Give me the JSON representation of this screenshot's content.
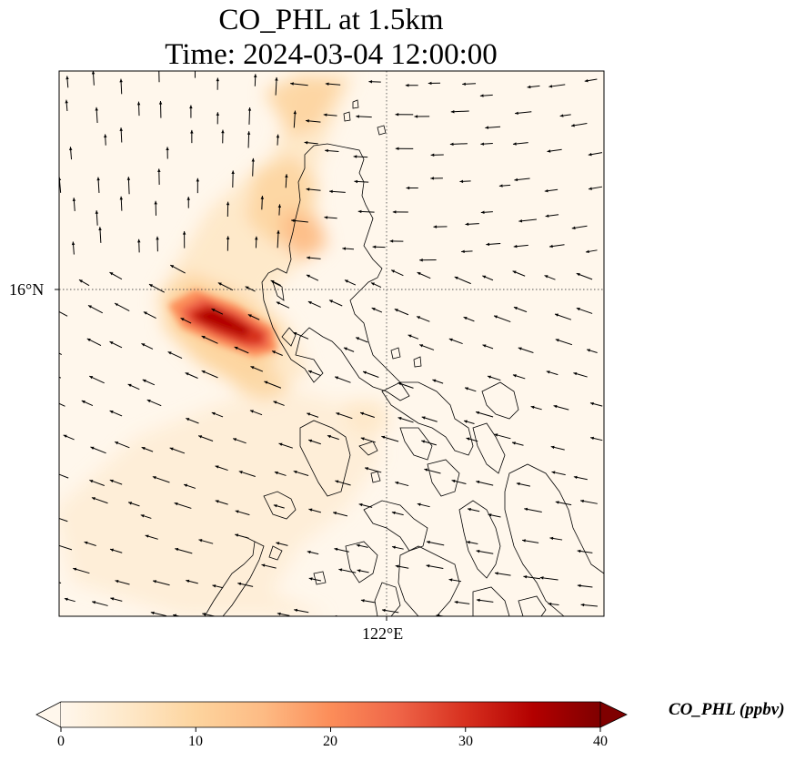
{
  "title_line1": "CO_PHL at 1.5km",
  "title_line2": "Time: 2024-03-04 12:00:00",
  "axes": {
    "lat_label": "16°N",
    "lon_label": "122°E"
  },
  "colorbar": {
    "label": "CO_PHL (ppbv)",
    "colormap": "OrRd",
    "min": 0,
    "max": 40,
    "ticks": [
      "0",
      "10",
      "20",
      "30",
      "40"
    ],
    "extend": "both",
    "colors": [
      "#fff7ec",
      "#fee8c8",
      "#fdd49e",
      "#fdbb84",
      "#fc8d59",
      "#ef6548",
      "#d7301f",
      "#b30000",
      "#7f0000"
    ]
  },
  "map": {
    "gridlines": "dotted",
    "background": "#fff7ec",
    "coastline_color": "#000000",
    "wind_vectors": true
  }
}
